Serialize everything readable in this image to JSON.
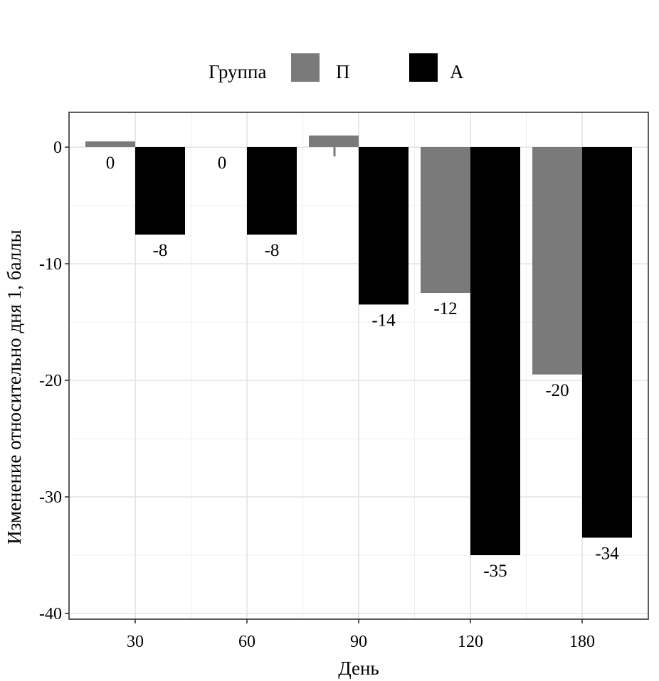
{
  "chart_data": {
    "type": "bar",
    "xlabel": "День",
    "ylabel": "Изменение относительно дня 1, баллы",
    "legend": {
      "title": "Группа",
      "position": "top"
    },
    "categories": [
      "30",
      "60",
      "90",
      "120",
      "180"
    ],
    "ylim": [
      -40,
      3
    ],
    "yticks": [
      0,
      -10,
      -20,
      -30,
      -40
    ],
    "grid": true,
    "series": [
      {
        "name": "П",
        "color": "#7a7a7a",
        "values": [
          0.5,
          0,
          1,
          -12.5,
          -19.5
        ],
        "labels": [
          "0",
          "0",
          "",
          "-12",
          "-20"
        ]
      },
      {
        "name": "А",
        "color": "#000000",
        "values": [
          -7.5,
          -7.5,
          -13.5,
          -35,
          -33.5
        ],
        "labels": [
          "-8",
          "-8",
          "-14",
          "-35",
          "-34"
        ]
      }
    ]
  }
}
